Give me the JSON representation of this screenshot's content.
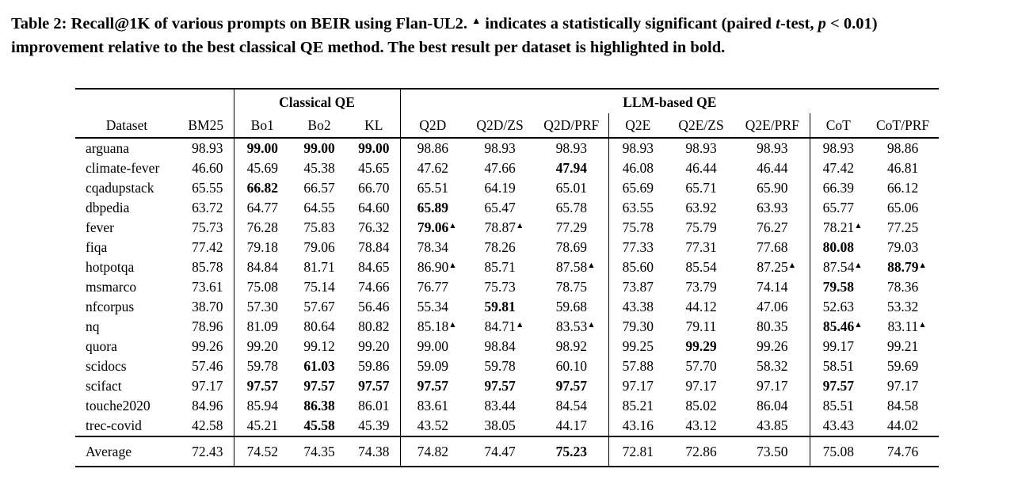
{
  "caption": {
    "part1": "Table 2: Recall@1K of various prompts on BEIR using Flan-UL2. ",
    "marker": "▲",
    "part2": " indicates a statistically significant (paired ",
    "italic_t": "t",
    "part3": "-test, ",
    "italic_p": "p",
    "part4": " < 0.01)",
    "part5": "improvement relative to the best classical QE method. The best result per dataset is highlighted in bold."
  },
  "table": {
    "significance_marker": "▲",
    "groups": [
      {
        "label": "",
        "span": 2
      },
      {
        "label": "Classical QE",
        "span": 3
      },
      {
        "label": "LLM-based QE",
        "span": 8
      }
    ],
    "columns": [
      "Dataset",
      "BM25",
      "Bo1",
      "Bo2",
      "KL",
      "Q2D",
      "Q2D/ZS",
      "Q2D/PRF",
      "Q2E",
      "Q2E/ZS",
      "Q2E/PRF",
      "CoT",
      "CoT/PRF"
    ],
    "rows": [
      {
        "dataset": "arguana",
        "values": [
          "98.93",
          "99.00",
          "99.00",
          "99.00",
          "98.86",
          "98.93",
          "98.93",
          "98.93",
          "98.93",
          "98.93",
          "98.93",
          "98.86"
        ],
        "bold": [
          1,
          2,
          3
        ],
        "sig": []
      },
      {
        "dataset": "climate-fever",
        "values": [
          "46.60",
          "45.69",
          "45.38",
          "45.65",
          "47.62",
          "47.66",
          "47.94",
          "46.08",
          "46.44",
          "46.44",
          "47.42",
          "46.81"
        ],
        "bold": [
          6
        ],
        "sig": []
      },
      {
        "dataset": "cqadupstack",
        "values": [
          "65.55",
          "66.82",
          "66.57",
          "66.70",
          "65.51",
          "64.19",
          "65.01",
          "65.69",
          "65.71",
          "65.90",
          "66.39",
          "66.12"
        ],
        "bold": [
          1
        ],
        "sig": []
      },
      {
        "dataset": "dbpedia",
        "values": [
          "63.72",
          "64.77",
          "64.55",
          "64.60",
          "65.89",
          "65.47",
          "65.78",
          "63.55",
          "63.92",
          "63.93",
          "65.77",
          "65.06"
        ],
        "bold": [
          4
        ],
        "sig": []
      },
      {
        "dataset": "fever",
        "values": [
          "75.73",
          "76.28",
          "75.83",
          "76.32",
          "79.06",
          "78.87",
          "77.29",
          "75.78",
          "75.79",
          "76.27",
          "78.21",
          "77.25"
        ],
        "bold": [
          4
        ],
        "sig": [
          4,
          5,
          10
        ]
      },
      {
        "dataset": "fiqa",
        "values": [
          "77.42",
          "79.18",
          "79.06",
          "78.84",
          "78.34",
          "78.26",
          "78.69",
          "77.33",
          "77.31",
          "77.68",
          "80.08",
          "79.03"
        ],
        "bold": [
          10
        ],
        "sig": []
      },
      {
        "dataset": "hotpotqa",
        "values": [
          "85.78",
          "84.84",
          "81.71",
          "84.65",
          "86.90",
          "85.71",
          "87.58",
          "85.60",
          "85.54",
          "87.25",
          "87.54",
          "88.79"
        ],
        "bold": [
          11
        ],
        "sig": [
          4,
          6,
          9,
          10,
          11
        ]
      },
      {
        "dataset": "msmarco",
        "values": [
          "73.61",
          "75.08",
          "75.14",
          "74.66",
          "76.77",
          "75.73",
          "78.75",
          "73.87",
          "73.79",
          "74.14",
          "79.58",
          "78.36"
        ],
        "bold": [
          10
        ],
        "sig": []
      },
      {
        "dataset": "nfcorpus",
        "values": [
          "38.70",
          "57.30",
          "57.67",
          "56.46",
          "55.34",
          "59.81",
          "59.68",
          "43.38",
          "44.12",
          "47.06",
          "52.63",
          "53.32"
        ],
        "bold": [
          5
        ],
        "sig": []
      },
      {
        "dataset": "nq",
        "values": [
          "78.96",
          "81.09",
          "80.64",
          "80.82",
          "85.18",
          "84.71",
          "83.53",
          "79.30",
          "79.11",
          "80.35",
          "85.46",
          "83.11"
        ],
        "bold": [
          10
        ],
        "sig": [
          4,
          5,
          6,
          10,
          11
        ]
      },
      {
        "dataset": "quora",
        "values": [
          "99.26",
          "99.20",
          "99.12",
          "99.20",
          "99.00",
          "98.84",
          "98.92",
          "99.25",
          "99.29",
          "99.26",
          "99.17",
          "99.21"
        ],
        "bold": [
          8
        ],
        "sig": []
      },
      {
        "dataset": "scidocs",
        "values": [
          "57.46",
          "59.78",
          "61.03",
          "59.86",
          "59.09",
          "59.78",
          "60.10",
          "57.88",
          "57.70",
          "58.32",
          "58.51",
          "59.69"
        ],
        "bold": [
          2
        ],
        "sig": []
      },
      {
        "dataset": "scifact",
        "values": [
          "97.17",
          "97.57",
          "97.57",
          "97.57",
          "97.57",
          "97.57",
          "97.57",
          "97.17",
          "97.17",
          "97.17",
          "97.57",
          "97.17"
        ],
        "bold": [
          1,
          2,
          3,
          4,
          5,
          6,
          10
        ],
        "sig": []
      },
      {
        "dataset": "touche2020",
        "values": [
          "84.96",
          "85.94",
          "86.38",
          "86.01",
          "83.61",
          "83.44",
          "84.54",
          "85.21",
          "85.02",
          "86.04",
          "85.51",
          "84.58"
        ],
        "bold": [
          2
        ],
        "sig": []
      },
      {
        "dataset": "trec-covid",
        "values": [
          "42.58",
          "45.21",
          "45.58",
          "45.39",
          "43.52",
          "38.05",
          "44.17",
          "43.16",
          "43.12",
          "43.85",
          "43.43",
          "44.02"
        ],
        "bold": [
          2
        ],
        "sig": []
      }
    ],
    "average_row": {
      "dataset": "Average",
      "values": [
        "72.43",
        "74.52",
        "74.35",
        "74.38",
        "74.82",
        "74.47",
        "75.23",
        "72.81",
        "72.86",
        "73.50",
        "75.08",
        "74.76"
      ],
      "bold": [
        6
      ],
      "sig": []
    }
  },
  "colors": {
    "text": "#000000",
    "background": "#ffffff",
    "rule": "#000000"
  }
}
